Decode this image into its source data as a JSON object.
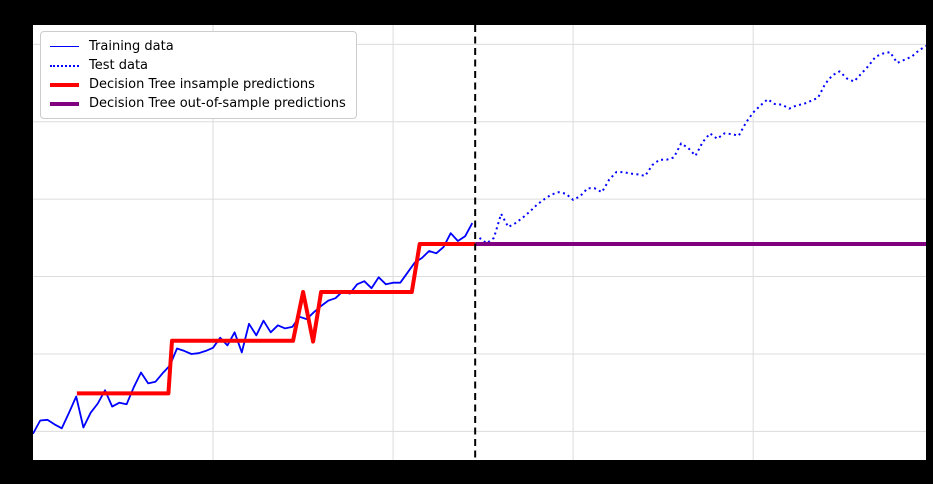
{
  "window": {
    "background": "#000000"
  },
  "plot": {
    "background": "#ffffff",
    "grid_color": "#dcdcdc"
  },
  "legend": {
    "position": "upper-left",
    "background": "#ffffff",
    "border_color": "#cccccc",
    "text_color": "#000000",
    "items": [
      {
        "label": "Training data",
        "swatch": "blue-solid-line"
      },
      {
        "label": "Test data",
        "swatch": "blue-dotted-line"
      },
      {
        "label": "Decision Tree insample predictions",
        "swatch": "red-thick-line"
      },
      {
        "label": "Decision Tree out-of-sample predictions",
        "swatch": "purple-thick-line"
      }
    ]
  },
  "chart_data": {
    "type": "line",
    "title": "",
    "x_axis": {
      "range": [
        0,
        124
      ],
      "gridlines": [
        25,
        50,
        75,
        100
      ],
      "tick_labels_visible": false
    },
    "y_axis": {
      "range": [
        9.63,
        15.25
      ],
      "gridlines": [
        10,
        11,
        12,
        13,
        14,
        15
      ],
      "tick_labels_visible": false
    },
    "train_test_split_x": 61.4,
    "series": [
      {
        "id": "train",
        "name": "Training data",
        "color": "#0000ff",
        "line_style": "solid",
        "line_width": 1.8,
        "x_start": 0,
        "x_step": 1,
        "values": [
          9.97,
          10.14,
          10.15,
          10.09,
          10.04,
          10.24,
          10.45,
          10.05,
          10.24,
          10.36,
          10.53,
          10.32,
          10.37,
          10.35,
          10.57,
          10.76,
          10.62,
          10.64,
          10.75,
          10.85,
          11.07,
          11.04,
          11.0,
          11.01,
          11.04,
          11.08,
          11.21,
          11.11,
          11.28,
          11.02,
          11.39,
          11.24,
          11.43,
          11.28,
          11.37,
          11.33,
          11.35,
          11.48,
          11.45,
          11.54,
          11.62,
          11.69,
          11.72,
          11.81,
          11.78,
          11.9,
          11.94,
          11.85,
          11.99,
          11.9,
          11.92,
          11.92,
          12.05,
          12.18,
          12.24,
          12.33,
          12.3,
          12.38,
          12.56,
          12.46,
          12.52,
          12.69
        ]
      },
      {
        "id": "test",
        "name": "Test data",
        "color": "#0000ff",
        "line_style": "dotted",
        "line_width": 2,
        "x_start": 62,
        "x_step": 1,
        "values": [
          12.5,
          12.43,
          12.5,
          12.81,
          12.64,
          12.69,
          12.76,
          12.84,
          12.93,
          13.0,
          13.06,
          13.09,
          13.07,
          12.99,
          13.04,
          13.14,
          13.14,
          13.09,
          13.25,
          13.35,
          13.35,
          13.33,
          13.32,
          13.3,
          13.44,
          13.51,
          13.51,
          13.54,
          13.72,
          13.66,
          13.56,
          13.74,
          13.85,
          13.78,
          13.85,
          13.84,
          13.82,
          13.99,
          14.12,
          14.21,
          14.29,
          14.23,
          14.22,
          14.17,
          14.21,
          14.23,
          14.27,
          14.31,
          14.49,
          14.6,
          14.65,
          14.56,
          14.52,
          14.62,
          14.72,
          14.84,
          14.88,
          14.9,
          14.76,
          14.8,
          14.84,
          14.92,
          14.98
        ]
      },
      {
        "id": "insample",
        "name": "Decision Tree insample predictions",
        "color": "#ff0000",
        "line_style": "solid",
        "line_width": 4,
        "points": [
          [
            6.1,
            10.49
          ],
          [
            18.8,
            10.49
          ],
          [
            19.3,
            11.17
          ],
          [
            36.1,
            11.17
          ],
          [
            37.5,
            11.8
          ],
          [
            38.9,
            11.16
          ],
          [
            40.0,
            11.8
          ],
          [
            52.6,
            11.8
          ],
          [
            53.7,
            12.42
          ],
          [
            61.4,
            12.42
          ]
        ]
      },
      {
        "id": "outsample",
        "name": "Decision Tree out-of-sample predictions",
        "color": "#800080",
        "line_style": "solid",
        "line_width": 4,
        "points": [
          [
            61.4,
            12.42
          ],
          [
            124,
            12.42
          ]
        ]
      }
    ],
    "annotations": [
      {
        "type": "vline",
        "x": 61.4,
        "color": "#000000",
        "line_style": "dashed",
        "width": 2
      }
    ]
  }
}
